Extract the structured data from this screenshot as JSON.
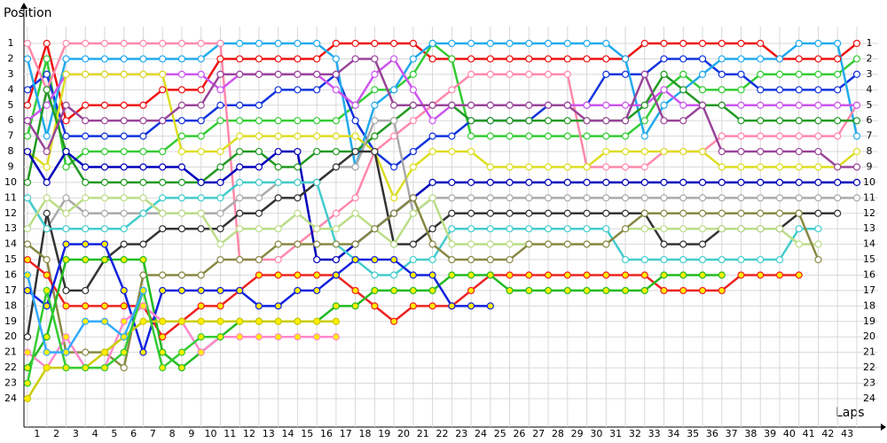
{
  "chart_data": {
    "type": "line",
    "y_label": "Position",
    "x_label": "Laps",
    "x": [
      0,
      1,
      2,
      3,
      4,
      5,
      6,
      7,
      8,
      9,
      10,
      11,
      12,
      13,
      14,
      15,
      16,
      17,
      18,
      19,
      20,
      21,
      22,
      23,
      24,
      25,
      26,
      27,
      28,
      29,
      30,
      31,
      32,
      33,
      34,
      35,
      36,
      37,
      38,
      39,
      40,
      41,
      42,
      43
    ],
    "xlim": [
      0,
      44
    ],
    "xticks": [
      1,
      2,
      3,
      4,
      5,
      6,
      7,
      8,
      9,
      10,
      11,
      12,
      13,
      14,
      15,
      16,
      17,
      18,
      19,
      20,
      21,
      22,
      23,
      24,
      25,
      26,
      27,
      28,
      29,
      30,
      31,
      32,
      33,
      34,
      35,
      36,
      37,
      38,
      39,
      40,
      41,
      42,
      43
    ],
    "ylim": [
      26,
      0
    ],
    "yticks": [
      1,
      2,
      3,
      4,
      5,
      6,
      7,
      8,
      9,
      10,
      11,
      12,
      13,
      14,
      15,
      16,
      17,
      18,
      19,
      20,
      21,
      22,
      23,
      24
    ],
    "grid": true,
    "series": [
      {
        "color": "#ee1111",
        "marker_fill": "#ffffff",
        "values": [
          5,
          1,
          6,
          5,
          5,
          5,
          5,
          4,
          4,
          4,
          2,
          2,
          2,
          2,
          2,
          2,
          1,
          1,
          1,
          1,
          1,
          2,
          2,
          2,
          2,
          2,
          2,
          2,
          2,
          2,
          2,
          2,
          1,
          1,
          1,
          1,
          1,
          1,
          1,
          2,
          2,
          2,
          2,
          1
        ]
      },
      {
        "color": "#33cc33",
        "marker_fill": "#ffffff",
        "values": [
          7,
          2,
          9,
          8,
          8,
          8,
          8,
          8,
          7,
          7,
          6,
          6,
          6,
          6,
          6,
          6,
          6,
          5,
          4,
          4,
          3,
          1,
          2,
          7,
          7,
          7,
          7,
          7,
          7,
          7,
          7,
          7,
          6,
          4,
          3,
          4,
          4,
          4,
          3,
          3,
          3,
          3,
          3,
          2
        ]
      },
      {
        "color": "#1133dd",
        "marker_fill": "#ffffff",
        "values": [
          4,
          3,
          7,
          7,
          7,
          7,
          7,
          6,
          6,
          6,
          5,
          5,
          5,
          4,
          4,
          4,
          3,
          6,
          8,
          9,
          8,
          7,
          7,
          6,
          6,
          6,
          6,
          5,
          5,
          5,
          3,
          3,
          3,
          2,
          2,
          2,
          3,
          3,
          4,
          4,
          4,
          4,
          4,
          3
        ]
      },
      {
        "color": "#22aaee",
        "marker_fill": "#ffffff",
        "values": [
          2,
          7,
          2,
          2,
          2,
          2,
          2,
          2,
          2,
          2,
          1,
          1,
          1,
          1,
          1,
          1,
          2,
          9,
          5,
          4,
          2,
          1,
          1,
          1,
          1,
          1,
          1,
          1,
          1,
          1,
          1,
          2,
          7,
          5,
          4,
          3,
          2,
          2,
          2,
          2,
          1,
          1,
          1,
          7
        ]
      },
      {
        "color": "#ff88aa",
        "marker_fill": "#ffffff",
        "values": [
          1,
          4,
          1,
          1,
          1,
          1,
          1,
          1,
          1,
          1,
          1,
          15,
          15,
          15,
          14,
          13,
          12,
          11,
          8,
          7,
          6,
          5,
          4,
          3,
          3,
          3,
          3,
          3,
          3,
          9,
          9,
          9,
          9,
          8,
          8,
          8,
          7,
          7,
          7,
          7,
          7,
          7,
          7,
          5
        ]
      },
      {
        "color": "#cc55ee",
        "marker_fill": "#ffffff",
        "values": [
          6,
          5,
          3,
          3,
          3,
          3,
          3,
          3,
          3,
          3,
          4,
          3,
          3,
          3,
          3,
          3,
          4,
          5,
          3,
          2,
          4,
          6,
          5,
          5,
          5,
          5,
          5,
          5,
          5,
          5,
          5,
          5,
          5,
          4,
          5,
          5,
          5,
          5,
          5,
          5,
          5,
          5,
          5,
          5
        ]
      },
      {
        "color": "#dddd22",
        "marker_fill": "#ffffff",
        "values": [
          8,
          9,
          3,
          3,
          3,
          3,
          3,
          3,
          8,
          8,
          8,
          7,
          7,
          7,
          7,
          7,
          7,
          7,
          8,
          11,
          9,
          8,
          8,
          8,
          9,
          9,
          9,
          9,
          9,
          9,
          8,
          8,
          8,
          8,
          8,
          8,
          9,
          9,
          9,
          9,
          9,
          9,
          9,
          8
        ]
      },
      {
        "color": "#229922",
        "marker_fill": "#ffffff",
        "values": [
          10,
          4,
          8,
          10,
          10,
          10,
          10,
          10,
          10,
          10,
          9,
          8,
          8,
          9,
          9,
          8,
          8,
          8,
          7,
          6,
          5,
          5,
          5,
          6,
          6,
          6,
          6,
          6,
          6,
          6,
          6,
          6,
          5,
          3,
          4,
          5,
          5,
          6,
          6,
          6,
          6,
          6,
          6,
          6
        ]
      },
      {
        "color": "#994499",
        "marker_fill": "#ffffff",
        "values": [
          6,
          8,
          5,
          6,
          6,
          6,
          6,
          6,
          5,
          5,
          3,
          3,
          3,
          3,
          3,
          3,
          3,
          2,
          2,
          5,
          5,
          5,
          5,
          5,
          5,
          5,
          5,
          5,
          5,
          6,
          6,
          6,
          3,
          6,
          6,
          5,
          8,
          8,
          8,
          8,
          8,
          8,
          9,
          9
        ]
      },
      {
        "color": "#0000bb",
        "marker_fill": "#ffffff",
        "values": [
          8,
          10,
          8,
          9,
          9,
          9,
          9,
          9,
          9,
          10,
          10,
          9,
          9,
          8,
          8,
          15,
          15,
          14,
          13,
          12,
          11,
          10,
          10,
          10,
          10,
          10,
          10,
          10,
          10,
          10,
          10,
          10,
          10,
          10,
          10,
          10,
          10,
          10,
          10,
          10,
          10,
          10,
          10,
          10
        ]
      },
      {
        "color": "#aaaaaa",
        "marker_fill": "#ffffff",
        "values": [
          11,
          13,
          11,
          12,
          12,
          12,
          12,
          12,
          12,
          12,
          12,
          11,
          11,
          10,
          10,
          10,
          9,
          9,
          6,
          6,
          12,
          11,
          11,
          11,
          11,
          11,
          11,
          11,
          11,
          11,
          11,
          11,
          11,
          11,
          11,
          11,
          11,
          11,
          11,
          11,
          11,
          11,
          11,
          11
        ]
      },
      {
        "color": "#333333",
        "marker_fill": "#ffffff",
        "values": [
          20,
          12,
          17,
          17,
          15,
          14,
          14,
          13,
          13,
          13,
          13,
          12,
          12,
          11,
          11,
          10,
          9,
          8,
          8,
          14,
          14,
          13,
          12,
          12,
          12,
          12,
          12,
          12,
          12,
          12,
          12,
          12,
          12,
          14,
          14,
          14,
          13,
          13,
          13,
          13,
          12,
          12,
          12,
          null
        ]
      },
      {
        "color": "#44cccc",
        "marker_fill": "#ffffff",
        "values": [
          11,
          13,
          13,
          13,
          13,
          13,
          12,
          11,
          11,
          11,
          11,
          10,
          10,
          10,
          10,
          10,
          14,
          15,
          16,
          16,
          15,
          15,
          13,
          13,
          13,
          13,
          13,
          13,
          13,
          13,
          13,
          15,
          15,
          15,
          15,
          15,
          15,
          15,
          15,
          15,
          13,
          13,
          null,
          null
        ]
      },
      {
        "color": "#bbdd88",
        "marker_fill": "#ffffff",
        "values": [
          13,
          11,
          12,
          11,
          11,
          11,
          11,
          12,
          12,
          12,
          14,
          13,
          13,
          13,
          12,
          13,
          13,
          12,
          13,
          14,
          12,
          11,
          14,
          14,
          14,
          14,
          14,
          14,
          14,
          14,
          14,
          13,
          13,
          13,
          13,
          13,
          13,
          13,
          13,
          13,
          14,
          14,
          null,
          null
        ]
      },
      {
        "color": "#888844",
        "marker_fill": "#ffffff",
        "values": [
          14,
          15,
          21,
          21,
          21,
          22,
          16,
          16,
          16,
          16,
          15,
          15,
          15,
          14,
          14,
          14,
          14,
          14,
          13,
          12,
          11,
          14,
          15,
          15,
          15,
          15,
          14,
          14,
          14,
          14,
          14,
          13,
          12,
          12,
          12,
          12,
          12,
          12,
          12,
          12,
          12,
          15,
          null,
          null
        ]
      },
      {
        "color": "#ee2222",
        "marker_fill": "#ffee00",
        "values": [
          15,
          16,
          18,
          18,
          18,
          18,
          18,
          20,
          19,
          18,
          18,
          17,
          16,
          16,
          16,
          16,
          16,
          17,
          18,
          19,
          18,
          18,
          18,
          17,
          16,
          16,
          16,
          16,
          16,
          16,
          16,
          16,
          16,
          17,
          17,
          17,
          17,
          16,
          16,
          16,
          16,
          null,
          null,
          null
        ]
      },
      {
        "color": "#22bb22",
        "marker_fill": "#ffee00",
        "values": [
          22,
          20,
          15,
          15,
          15,
          15,
          15,
          21,
          22,
          21,
          20,
          19,
          19,
          19,
          19,
          19,
          18,
          18,
          17,
          17,
          17,
          17,
          16,
          16,
          16,
          17,
          17,
          17,
          17,
          17,
          17,
          17,
          17,
          16,
          16,
          16,
          16,
          null,
          null,
          null,
          null,
          null,
          null,
          null
        ]
      },
      {
        "color": "#1122dd",
        "marker_fill": "#ffee00",
        "values": [
          17,
          18,
          14,
          14,
          14,
          17,
          21,
          17,
          17,
          17,
          17,
          17,
          18,
          18,
          17,
          17,
          16,
          15,
          15,
          15,
          16,
          16,
          18,
          18,
          18,
          null,
          null,
          null,
          null,
          null,
          null,
          null,
          null,
          null,
          null,
          null,
          null,
          null,
          null,
          null,
          null,
          null,
          null,
          null
        ]
      },
      {
        "color": "#ff88cc",
        "marker_fill": "#ffee00",
        "values": [
          21,
          22,
          20,
          22,
          22,
          19,
          18,
          19,
          19,
          21,
          20,
          20,
          20,
          20,
          20,
          20,
          20,
          null,
          null,
          null,
          null,
          null,
          null,
          null,
          null,
          null,
          null,
          null,
          null,
          null,
          null,
          null,
          null,
          null,
          null,
          null,
          null,
          null,
          null,
          null,
          null,
          null,
          null,
          null
        ]
      },
      {
        "color": "#cccc00",
        "marker_fill": "#ffee00",
        "values": [
          24,
          22,
          22,
          22,
          21,
          20,
          19,
          19,
          19,
          19,
          19,
          19,
          19,
          19,
          19,
          19,
          19,
          null,
          null,
          null,
          null,
          null,
          null,
          null,
          null,
          null,
          null,
          null,
          null,
          null,
          null,
          null,
          null,
          null,
          null,
          null,
          null,
          null,
          null,
          null,
          null,
          null,
          null,
          null
        ]
      },
      {
        "color": "#33cc33",
        "marker_fill": "#ffee00",
        "values": [
          23,
          17,
          22,
          22,
          22,
          21,
          17,
          22,
          21,
          20,
          20,
          null,
          null,
          null,
          null,
          null,
          null,
          null,
          null,
          null,
          null,
          null,
          null,
          null,
          null,
          null,
          null,
          null,
          null,
          null,
          null,
          null,
          null,
          null,
          null,
          null,
          null,
          null,
          null,
          null,
          null,
          null,
          null,
          null
        ]
      },
      {
        "color": "#33aaff",
        "marker_fill": "#ffee00",
        "values": [
          16,
          21,
          21,
          19,
          19,
          20,
          17,
          null,
          null,
          null,
          null,
          null,
          null,
          null,
          null,
          null,
          null,
          null,
          null,
          null,
          null,
          null,
          null,
          null,
          null,
          null,
          null,
          null,
          null,
          null,
          null,
          null,
          null,
          null,
          null,
          null,
          null,
          null,
          null,
          null,
          null,
          null,
          null,
          null
        ]
      }
    ]
  }
}
